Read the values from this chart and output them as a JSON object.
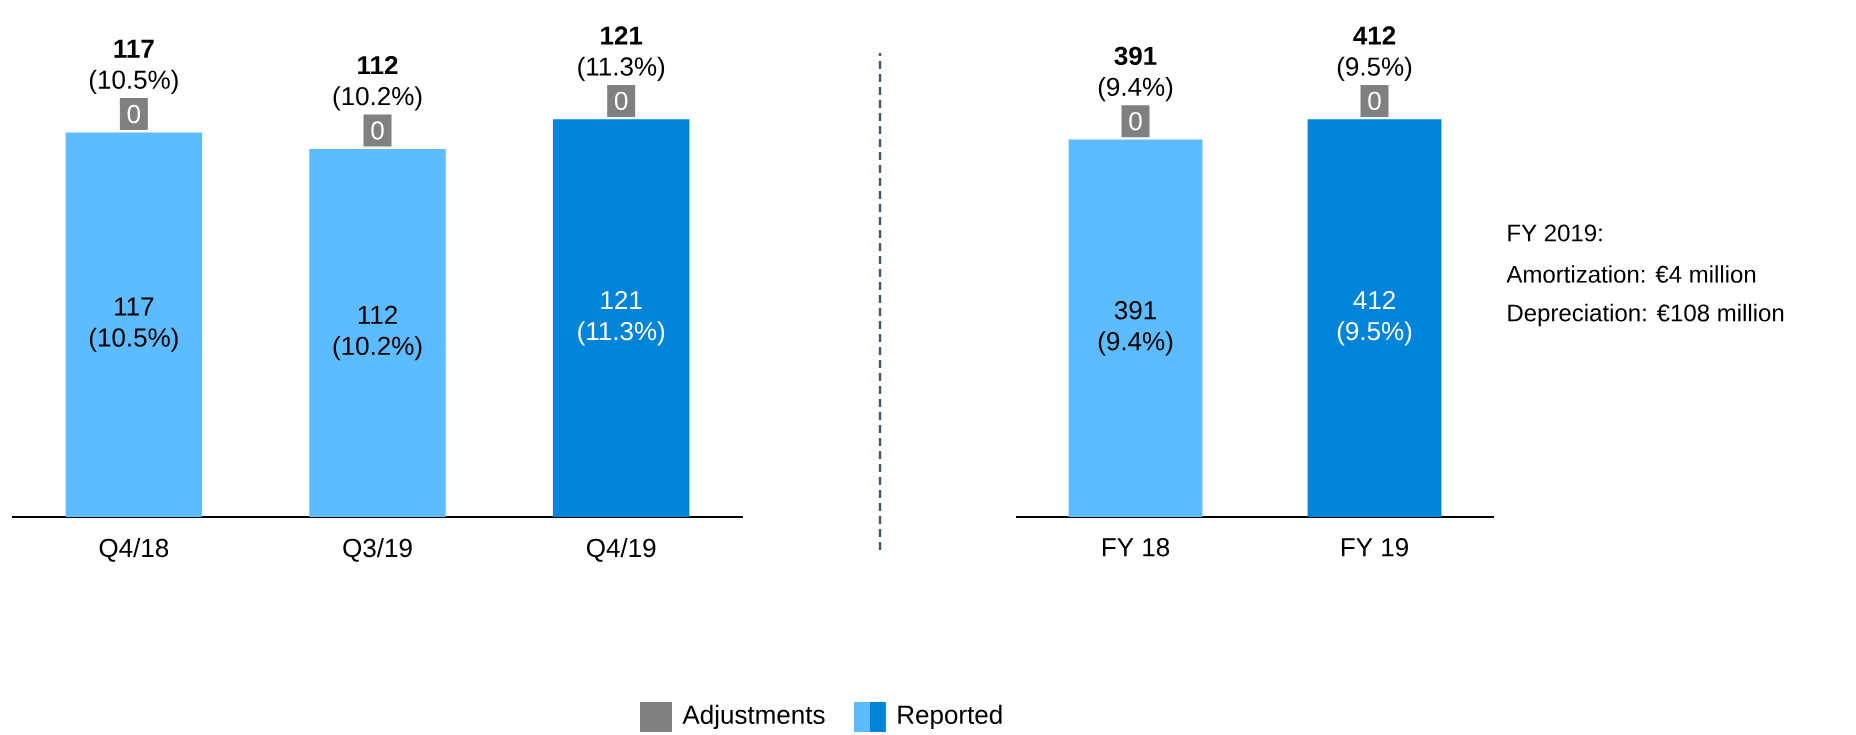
{
  "chart_data": [
    {
      "type": "bar",
      "stacked": true,
      "categories": [
        "Q4/18",
        "Q3/19",
        "Q4/19"
      ],
      "legend": "bottom",
      "series": [
        {
          "name": "Reported",
          "colors": [
            "#5cbcff",
            "#5cbcff",
            "#0084d9"
          ],
          "values": [
            117,
            112,
            121
          ],
          "value_labels": [
            "117 (10.5%)",
            "112 (10.2%)",
            "121 (11.3%)"
          ]
        },
        {
          "name": "Adjustments",
          "color": "#808080",
          "values": [
            0,
            0,
            0
          ],
          "value_labels": [
            "0",
            "0",
            "0"
          ]
        }
      ],
      "totals": [
        "**117** (10.5%)",
        "**112** (10.2%)",
        "**121** (11.3%)"
      ]
    },
    {
      "type": "bar",
      "stacked": true,
      "categories": [
        "FY 18",
        "FY 19"
      ],
      "series": [
        {
          "colors": [
            "#5cbcff",
            "#0084d9"
          ],
          "values": [
            391,
            412
          ],
          "value_labels": [
            "391 (9.4%)",
            "412 (9.5%)"
          ]
        },
        {
          "color": "#808080",
          "values": [
            0,
            0
          ],
          "value_labels": [
            "0",
            "0"
          ]
        }
      ],
      "totals": [
        "**391** (9.4%)",
        "**412** (9.5%)"
      ],
      "annotations": [
        "FY 2019:",
        "Amortization: €4 million",
        "Depreciation: €108 million"
      ]
    }
  ]
}
